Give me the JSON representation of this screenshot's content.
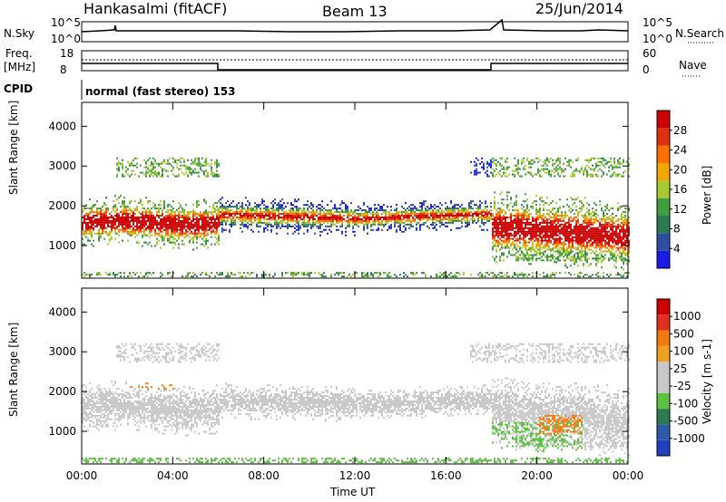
{
  "header": {
    "station": "Hankasalmi (fitACF)",
    "beam": "Beam 13",
    "date": "25/Jun/2014"
  },
  "panels": {
    "nsky": {
      "label": "N.Sky",
      "right_label": "N.Search",
      "ticks_left": [
        "10^5",
        "10^0"
      ],
      "ticks_right": [
        "10^5",
        "10^0"
      ]
    },
    "freq": {
      "label": "Freq.",
      "unit": "[MHz]",
      "right_label": "Nave",
      "ticks_left": [
        "18",
        "8"
      ],
      "ticks_right": [
        "60",
        "0"
      ]
    },
    "cpid": {
      "label": "CPID",
      "text": "normal (fast stereo) 153"
    }
  },
  "colors": {
    "power_scale": [
      "#1a1ae6",
      "#2d4fa0",
      "#2f7a55",
      "#3f9f3f",
      "#a8c832",
      "#f0a800",
      "#ff7000",
      "#e03010",
      "#cc0000"
    ],
    "velocity_scale": [
      "#2040c0",
      "#2e5aa8",
      "#2f7a50",
      "#5cc040",
      "#c8c8c8",
      "#c8c8c8",
      "#f0a020",
      "#f07a10",
      "#e03020",
      "#d00000"
    ]
  },
  "chart_data": [
    {
      "type": "heatmap",
      "title": "Power",
      "ylabel": "Slant Range [km]",
      "xlabel": "Time UT",
      "ylim": [
        180,
        4600
      ],
      "yticks": [
        "4000",
        "3000",
        "2000",
        "1000"
      ],
      "xticks": [
        "00:00",
        "04:00",
        "08:00",
        "12:00",
        "16:00",
        "20:00",
        "00:00"
      ],
      "colorbar": {
        "label": "Power [dB]",
        "ticks": [
          "28",
          "24",
          "20",
          "16",
          "12",
          "8",
          "4"
        ]
      }
    },
    {
      "type": "heatmap",
      "title": "Velocity",
      "ylabel": "Slant Range [km]",
      "xlabel": "Time UT",
      "ylim": [
        180,
        4600
      ],
      "yticks": [
        "4000",
        "3000",
        "2000",
        "1000"
      ],
      "xticks": [
        "00:00",
        "04:00",
        "08:00",
        "12:00",
        "16:00",
        "20:00",
        "00:00"
      ],
      "colorbar": {
        "label": "Velocity [m s-1]",
        "ticks": [
          "1000",
          "500",
          "100",
          "25",
          "-25",
          "-100",
          "-500",
          "-1000"
        ]
      }
    }
  ]
}
